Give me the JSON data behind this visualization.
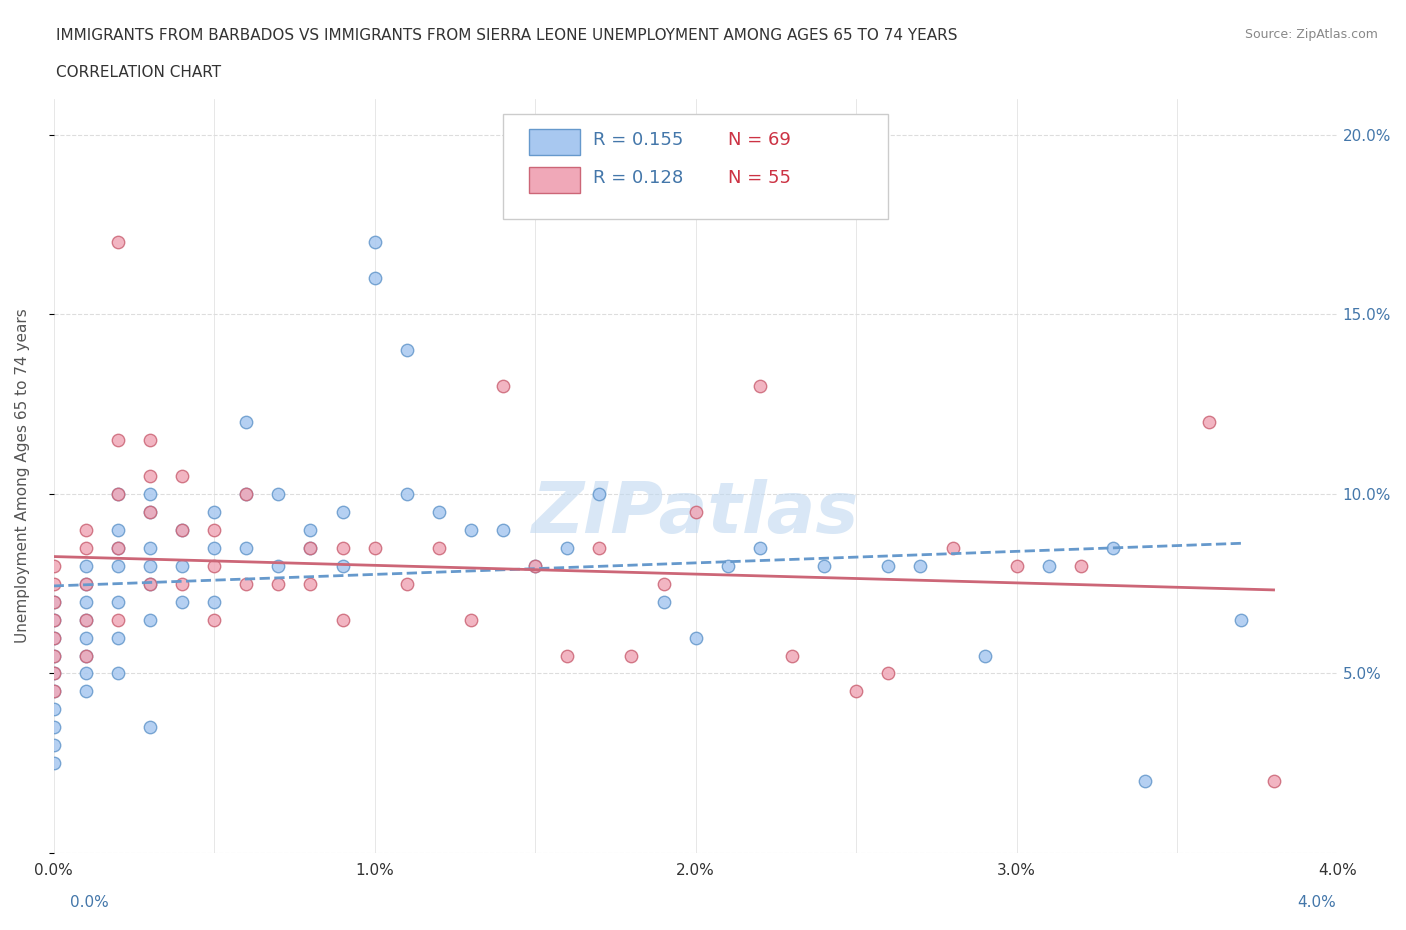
{
  "title_line1": "IMMIGRANTS FROM BARBADOS VS IMMIGRANTS FROM SIERRA LEONE UNEMPLOYMENT AMONG AGES 65 TO 74 YEARS",
  "title_line2": "CORRELATION CHART",
  "source_text": "Source: ZipAtlas.com",
  "xlabel": "",
  "ylabel": "Unemployment Among Ages 65 to 74 years",
  "xlim": [
    0.0,
    0.04
  ],
  "ylim": [
    0.0,
    0.21
  ],
  "xticks": [
    0.0,
    0.005,
    0.01,
    0.015,
    0.02,
    0.025,
    0.03,
    0.035,
    0.04
  ],
  "xticklabels": [
    "0.0%",
    "",
    "1.0%",
    "",
    "2.0%",
    "",
    "3.0%",
    "",
    "4.0%"
  ],
  "yticks": [
    0.0,
    0.05,
    0.1,
    0.15,
    0.2
  ],
  "yticklabels": [
    "",
    "5.0%",
    "10.0%",
    "15.0%",
    "20.0%"
  ],
  "barbados_color": "#a8c8f0",
  "sierraleone_color": "#f0a8b8",
  "barbados_line_color": "#6699cc",
  "sierraleone_line_color": "#cc6677",
  "R_barbados": 0.155,
  "N_barbados": 69,
  "R_sierraleone": 0.128,
  "N_sierraleone": 55,
  "legend_R_color": "#4477aa",
  "legend_N_color": "#cc4455",
  "watermark_text": "ZIPatlas",
  "watermark_color": "#c0d8f0",
  "background_color": "#ffffff",
  "grid_color": "#dddddd",
  "barbados_x": [
    0.0,
    0.0,
    0.0,
    0.0,
    0.0,
    0.0,
    0.0,
    0.0,
    0.0,
    0.0,
    0.001,
    0.001,
    0.001,
    0.001,
    0.001,
    0.001,
    0.001,
    0.001,
    0.002,
    0.002,
    0.002,
    0.002,
    0.002,
    0.002,
    0.002,
    0.003,
    0.003,
    0.003,
    0.003,
    0.003,
    0.003,
    0.003,
    0.004,
    0.004,
    0.004,
    0.005,
    0.005,
    0.005,
    0.006,
    0.006,
    0.006,
    0.007,
    0.007,
    0.008,
    0.008,
    0.009,
    0.009,
    0.01,
    0.01,
    0.011,
    0.011,
    0.012,
    0.013,
    0.014,
    0.015,
    0.016,
    0.017,
    0.019,
    0.02,
    0.021,
    0.022,
    0.024,
    0.026,
    0.027,
    0.029,
    0.031,
    0.033,
    0.034,
    0.037
  ],
  "barbados_y": [
    0.07,
    0.065,
    0.06,
    0.055,
    0.05,
    0.045,
    0.04,
    0.035,
    0.03,
    0.025,
    0.08,
    0.075,
    0.07,
    0.065,
    0.06,
    0.055,
    0.05,
    0.045,
    0.1,
    0.09,
    0.085,
    0.08,
    0.07,
    0.06,
    0.05,
    0.1,
    0.095,
    0.085,
    0.08,
    0.075,
    0.065,
    0.035,
    0.09,
    0.08,
    0.07,
    0.095,
    0.085,
    0.07,
    0.12,
    0.1,
    0.085,
    0.1,
    0.08,
    0.09,
    0.085,
    0.095,
    0.08,
    0.16,
    0.17,
    0.14,
    0.1,
    0.095,
    0.09,
    0.09,
    0.08,
    0.085,
    0.1,
    0.07,
    0.06,
    0.08,
    0.085,
    0.08,
    0.08,
    0.08,
    0.055,
    0.08,
    0.085,
    0.02,
    0.065
  ],
  "sierraleone_x": [
    0.0,
    0.0,
    0.0,
    0.0,
    0.0,
    0.0,
    0.0,
    0.0,
    0.001,
    0.001,
    0.001,
    0.001,
    0.001,
    0.002,
    0.002,
    0.002,
    0.002,
    0.002,
    0.003,
    0.003,
    0.003,
    0.003,
    0.004,
    0.004,
    0.004,
    0.005,
    0.005,
    0.005,
    0.006,
    0.006,
    0.007,
    0.008,
    0.008,
    0.009,
    0.009,
    0.01,
    0.011,
    0.012,
    0.013,
    0.014,
    0.015,
    0.016,
    0.017,
    0.018,
    0.019,
    0.02,
    0.022,
    0.023,
    0.025,
    0.026,
    0.028,
    0.03,
    0.032,
    0.036,
    0.038
  ],
  "sierraleone_y": [
    0.08,
    0.075,
    0.07,
    0.065,
    0.06,
    0.055,
    0.05,
    0.045,
    0.09,
    0.085,
    0.075,
    0.065,
    0.055,
    0.17,
    0.115,
    0.1,
    0.085,
    0.065,
    0.115,
    0.105,
    0.095,
    0.075,
    0.105,
    0.09,
    0.075,
    0.09,
    0.08,
    0.065,
    0.1,
    0.075,
    0.075,
    0.085,
    0.075,
    0.085,
    0.065,
    0.085,
    0.075,
    0.085,
    0.065,
    0.13,
    0.08,
    0.055,
    0.085,
    0.055,
    0.075,
    0.095,
    0.13,
    0.055,
    0.045,
    0.05,
    0.085,
    0.08,
    0.08,
    0.12,
    0.02
  ]
}
